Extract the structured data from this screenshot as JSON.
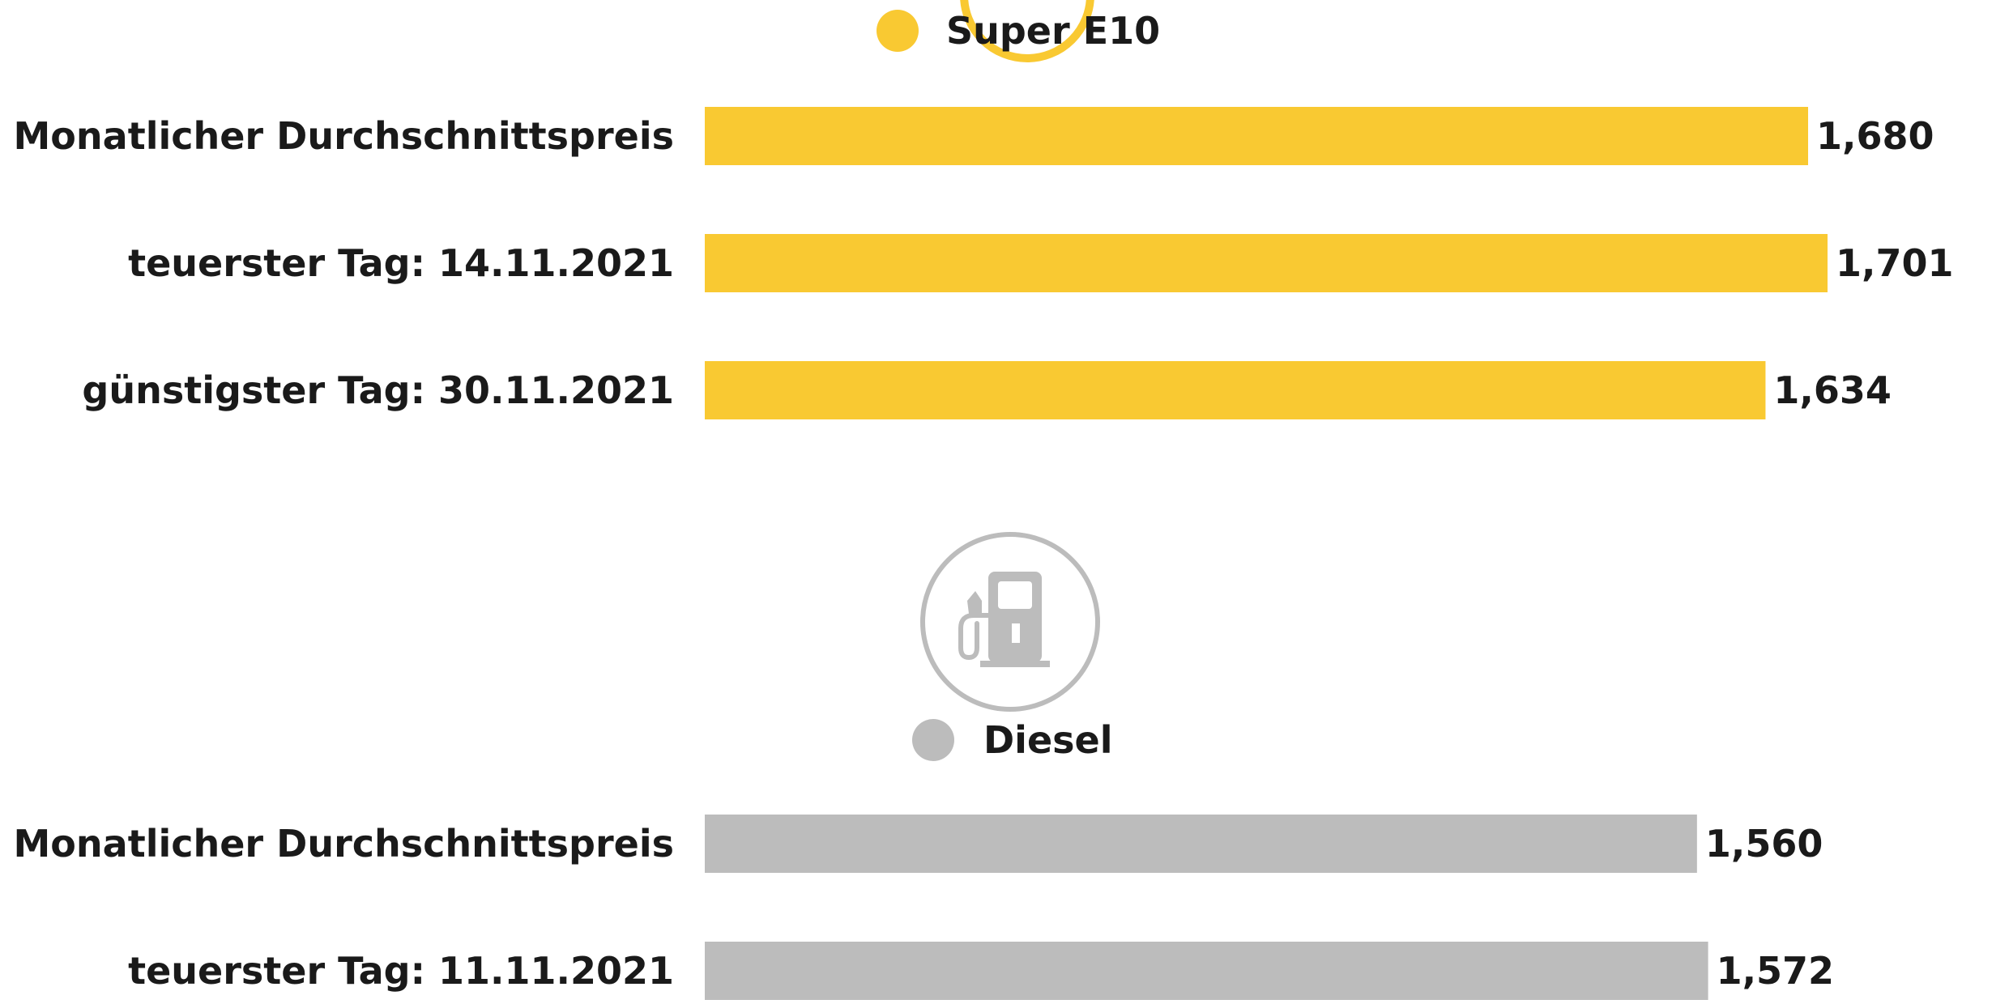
{
  "chart_data": {
    "type": "bar",
    "orientation": "horizontal",
    "unit": "",
    "series": [
      {
        "name": "Super E10",
        "color": "#f9c932",
        "categories": [
          "Monatlicher Durchschnittspreis",
          "teuerster Tag: 14.11.2021",
          "günstigster Tag: 30.11.2021"
        ],
        "values": [
          1.68,
          1.701,
          1.634
        ],
        "value_labels": [
          "1,680",
          "1,701",
          "1,634"
        ]
      },
      {
        "name": "Diesel",
        "color": "#bcbcbc",
        "categories": [
          "Monatlicher Durchschnittspreis",
          "teuerster Tag: 11.11.2021"
        ],
        "values": [
          1.56,
          1.572
        ],
        "value_labels": [
          "1,560",
          "1,572"
        ]
      }
    ],
    "xlim": [
      0,
      1.701
    ],
    "icons": [
      "fuel-pump-icon"
    ]
  }
}
